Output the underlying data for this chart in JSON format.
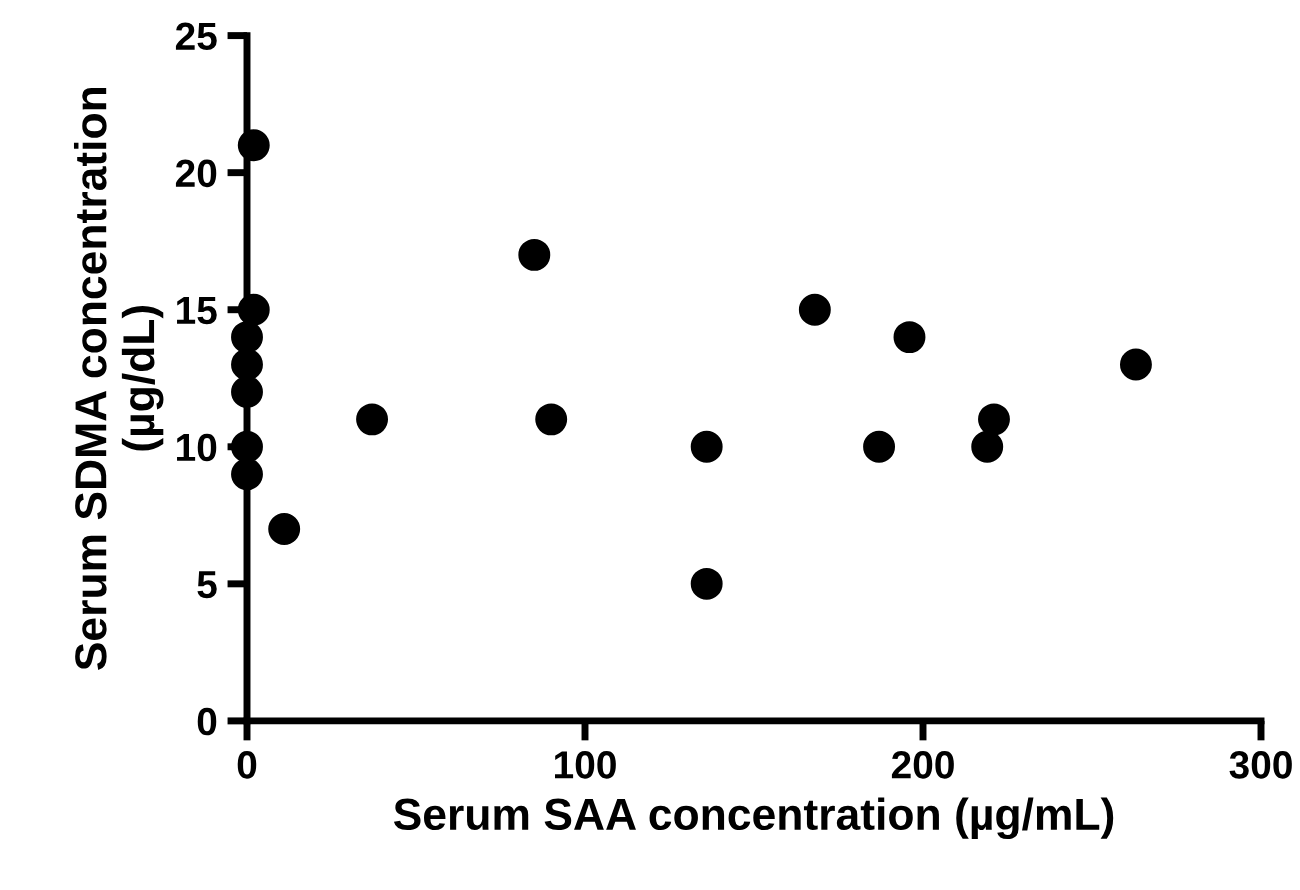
{
  "chart_data": {
    "type": "scatter",
    "xlabel": "Serum SAA concentration (µg/mL)",
    "ylabel": "Serum SDMA concentration\n(µg/dL)",
    "x": [
      2,
      2,
      0,
      0,
      0,
      0,
      0,
      11,
      37,
      85,
      90,
      136,
      136,
      168,
      187,
      196,
      219,
      221,
      263
    ],
    "values": [
      21,
      15,
      14,
      13,
      12,
      10,
      9,
      7,
      11,
      17,
      11,
      10,
      5,
      15,
      10,
      14,
      10,
      11,
      13
    ],
    "color": "#000000",
    "marker": "circle",
    "xlim": [
      0,
      300
    ],
    "xticks": [
      0,
      100,
      200,
      300
    ],
    "ylim": [
      0,
      25
    ],
    "yticks": [
      0,
      5,
      10,
      15,
      20,
      25
    ],
    "grid": false
  }
}
